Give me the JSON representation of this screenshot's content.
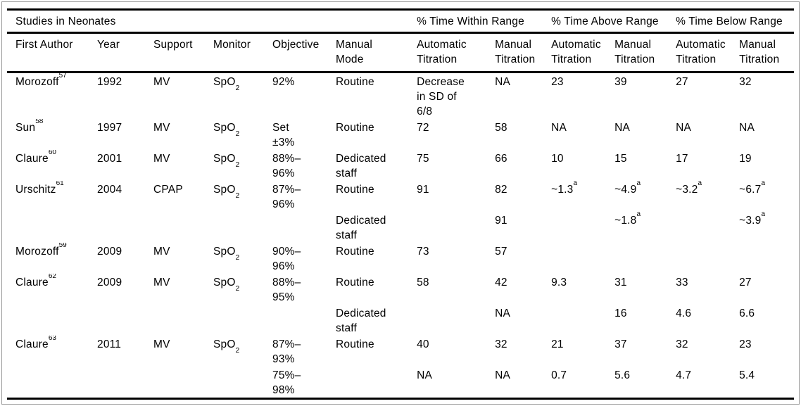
{
  "table": {
    "title": "Studies in Neonates",
    "group_headers": [
      "% Time Within Range",
      "% Time Above Range",
      "% Time Below Range"
    ],
    "columns": [
      "First Author",
      "Year",
      "Support",
      "Monitor",
      "Objective",
      "Manual\nMode",
      "Automatic\nTitration",
      "Manual\nTitration",
      "Automatic\nTitration",
      "Manual\nTitration",
      "Automatic\nTitration",
      "Manual\nTitration"
    ],
    "rows": [
      [
        {
          "t": "Morozoff",
          "sup": "57"
        },
        "1992",
        "MV",
        {
          "t": "SpO",
          "sub": "2"
        },
        "92%",
        "Routine",
        "Decrease\nin SD of\n6/8",
        "NA",
        "23",
        "39",
        "27",
        "32"
      ],
      [
        {
          "t": "Sun",
          "sup": "58"
        },
        "1997",
        "MV",
        {
          "t": "SpO",
          "sub": "2"
        },
        "Set\n±3%",
        "Routine",
        "72",
        "58",
        "NA",
        "NA",
        "NA",
        "NA"
      ],
      [
        {
          "t": "Claure",
          "sup": "60"
        },
        "2001",
        "MV",
        {
          "t": "SpO",
          "sub": "2"
        },
        "88%–\n96%",
        "Dedicated\nstaff",
        "75",
        "66",
        "10",
        "15",
        "17",
        "19"
      ],
      [
        {
          "t": "Urschitz",
          "sup": "61"
        },
        "2004",
        "CPAP",
        {
          "t": "SpO",
          "sub": "2"
        },
        "87%–\n96%",
        "Routine",
        "91",
        "82",
        {
          "t": "~1.3",
          "sup": "a"
        },
        {
          "t": "~4.9",
          "sup": "a"
        },
        {
          "t": "~3.2",
          "sup": "a"
        },
        {
          "t": "~6.7",
          "sup": "a"
        }
      ],
      [
        "",
        "",
        "",
        "",
        "",
        "Dedicated\nstaff",
        "",
        "91",
        "",
        {
          "t": "~1.8",
          "sup": "a"
        },
        "",
        {
          "t": "~3.9",
          "sup": "a"
        }
      ],
      [
        {
          "t": "Morozoff",
          "sup": "59"
        },
        "2009",
        "MV",
        {
          "t": "SpO",
          "sub": "2"
        },
        "90%–\n96%",
        "Routine",
        "73",
        "57",
        "",
        "",
        "",
        ""
      ],
      [
        {
          "t": "Claure",
          "sup": "62"
        },
        "2009",
        "MV",
        {
          "t": "SpO",
          "sub": "2"
        },
        "88%–\n95%",
        "Routine",
        "58",
        "42",
        "9.3",
        "31",
        "33",
        "27"
      ],
      [
        "",
        "",
        "",
        "",
        "",
        "Dedicated\nstaff",
        "",
        "NA",
        "",
        "16",
        "4.6",
        "6.6"
      ],
      [
        {
          "t": "Claure",
          "sup": "63"
        },
        "2011",
        "MV",
        {
          "t": "SpO",
          "sub": "2"
        },
        "87%–\n93%",
        "Routine",
        "40",
        "32",
        "21",
        "37",
        "32",
        "23"
      ],
      [
        "",
        "",
        "",
        "",
        "75%–\n98%",
        "",
        "NA",
        "NA",
        "0.7",
        "5.6",
        "4.7",
        "5.4"
      ]
    ]
  }
}
